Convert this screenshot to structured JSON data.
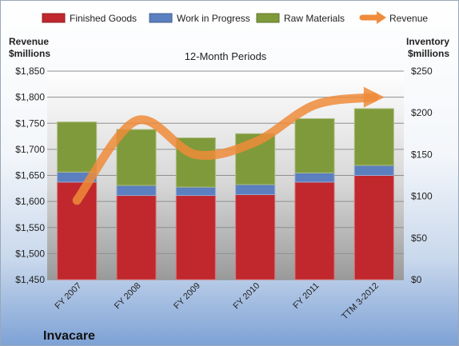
{
  "chart_data": {
    "type": "bar",
    "title": "12-Month Periods",
    "company": "Invacare",
    "left_axis_label_line1": "Revenue",
    "left_axis_label_line2": "$millions",
    "right_axis_label_line1": "Inventory",
    "right_axis_label_line2": "$millions",
    "categories": [
      "FY 2007",
      "FY 2008",
      "FY 2009",
      "FY 2010",
      "FY 2011",
      "TTM 3-2012"
    ],
    "stacked": true,
    "bar_series": [
      {
        "name": "Finished Goods",
        "color": "#c0282d",
        "values": [
          117,
          101,
          101,
          102,
          117,
          125
        ]
      },
      {
        "name": "Work in Progress",
        "color": "#5b7fbf",
        "values": [
          12,
          12,
          10,
          12,
          11,
          12
        ]
      },
      {
        "name": "Raw Materials",
        "color": "#7f9a3a",
        "values": [
          60,
          67,
          59,
          61,
          65,
          68
        ]
      }
    ],
    "line_series": {
      "name": "Revenue",
      "color": "#ef8b3a",
      "axis": "left",
      "values": [
        1602,
        1755,
        1690,
        1714,
        1785,
        1800
      ]
    },
    "left_axis": {
      "min": 1450,
      "max": 1850,
      "step": 50,
      "ticks": [
        "$1,450",
        "$1,500",
        "$1,550",
        "$1,600",
        "$1,650",
        "$1,700",
        "$1,750",
        "$1,800",
        "$1,850"
      ]
    },
    "right_axis": {
      "min": 0,
      "max": 250,
      "step": 50,
      "ticks": [
        "$0",
        "$50",
        "$100",
        "$150",
        "$200",
        "$250"
      ]
    },
    "grid": true,
    "legend_position": "top"
  }
}
